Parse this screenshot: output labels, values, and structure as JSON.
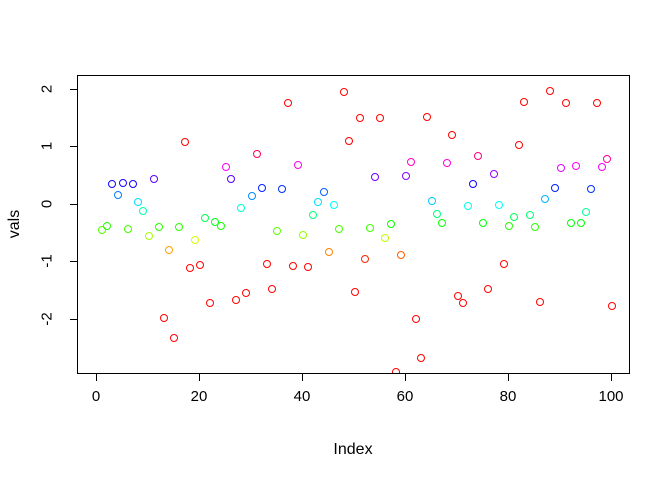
{
  "chart_data": {
    "type": "scatter",
    "title": "",
    "xlabel": "Index",
    "ylabel": "vals",
    "xlim": [
      0,
      104
    ],
    "ylim": [
      -2.95,
      2.05
    ],
    "x_ticks": [
      0,
      20,
      40,
      60,
      80,
      100
    ],
    "y_ticks": [
      -2,
      -1,
      0,
      1,
      2
    ],
    "grid": false,
    "legend": "none",
    "marker": "open-circle",
    "color_rule": "rainbow hue mapped to value: hue = 180 + 180*clamp(value,-1,1) degrees",
    "points": [
      {
        "x": 1,
        "y": -0.44,
        "color": "#52FF00"
      },
      {
        "x": 2,
        "y": -0.38,
        "color": "#24FF00"
      },
      {
        "x": 3,
        "y": 0.36,
        "color": "#1400FF"
      },
      {
        "x": 4,
        "y": 0.17,
        "color": "#007DFF"
      },
      {
        "x": 5,
        "y": 0.37,
        "color": "#1C00FF"
      },
      {
        "x": 6,
        "y": -0.42,
        "color": "#42FF00"
      },
      {
        "x": 7,
        "y": 0.36,
        "color": "#1400FF"
      },
      {
        "x": 8,
        "y": 0.04,
        "color": "#00E0FF"
      },
      {
        "x": 9,
        "y": -0.11,
        "color": "#00FFAB"
      },
      {
        "x": 10,
        "y": -0.55,
        "color": "#A6FF00"
      },
      {
        "x": 11,
        "y": 0.45,
        "color": "#5900FF"
      },
      {
        "x": 12,
        "y": -0.39,
        "color": "#2BFF00"
      },
      {
        "x": 13,
        "y": -1.97,
        "color": "#FF0000"
      },
      {
        "x": 14,
        "y": -0.79,
        "color": "#FFA100"
      },
      {
        "x": 15,
        "y": -2.32,
        "color": "#FF0000"
      },
      {
        "x": 16,
        "y": -0.39,
        "color": "#2BFF00"
      },
      {
        "x": 17,
        "y": 1.09,
        "color": "#FF0000"
      },
      {
        "x": 18,
        "y": -1.1,
        "color": "#FF0000"
      },
      {
        "x": 19,
        "y": -0.61,
        "color": "#D4FF00"
      },
      {
        "x": 20,
        "y": -1.05,
        "color": "#FF0000"
      },
      {
        "x": 21,
        "y": -0.23,
        "color": "#00FF4F"
      },
      {
        "x": 22,
        "y": -1.71,
        "color": "#FF0000"
      },
      {
        "x": 23,
        "y": -0.3,
        "color": "#00FF1A"
      },
      {
        "x": 24,
        "y": -0.37,
        "color": "#1CFF00"
      },
      {
        "x": 25,
        "y": 0.66,
        "color": "#FA00FF"
      },
      {
        "x": 26,
        "y": 0.44,
        "color": "#5200FF"
      },
      {
        "x": 27,
        "y": -1.66,
        "color": "#FF0000"
      },
      {
        "x": 28,
        "y": -0.06,
        "color": "#00FFD1"
      },
      {
        "x": 29,
        "y": -1.54,
        "color": "#FF0000"
      },
      {
        "x": 30,
        "y": 0.15,
        "color": "#008CFF"
      },
      {
        "x": 31,
        "y": 0.88,
        "color": "#FF005C"
      },
      {
        "x": 32,
        "y": 0.29,
        "color": "#0021FF"
      },
      {
        "x": 33,
        "y": -1.03,
        "color": "#FF0000"
      },
      {
        "x": 34,
        "y": -1.47,
        "color": "#FF0000"
      },
      {
        "x": 35,
        "y": -0.46,
        "color": "#61FF00"
      },
      {
        "x": 36,
        "y": 0.27,
        "color": "#0030FF"
      },
      {
        "x": 37,
        "y": 1.77,
        "color": "#FF0000"
      },
      {
        "x": 38,
        "y": -1.07,
        "color": "#FF0000"
      },
      {
        "x": 39,
        "y": 0.69,
        "color": "#FF00ED"
      },
      {
        "x": 40,
        "y": -0.53,
        "color": "#96FF00"
      },
      {
        "x": 41,
        "y": -1.09,
        "color": "#FF0000"
      },
      {
        "x": 42,
        "y": -0.18,
        "color": "#00FF75"
      },
      {
        "x": 43,
        "y": 0.04,
        "color": "#00E0FF"
      },
      {
        "x": 44,
        "y": 0.21,
        "color": "#005EFF"
      },
      {
        "x": 45,
        "y": -0.83,
        "color": "#FF8200"
      },
      {
        "x": 46,
        "y": 0.0,
        "color": "#00FFFF"
      },
      {
        "x": 47,
        "y": -0.43,
        "color": "#4AFF00"
      },
      {
        "x": 48,
        "y": 1.95,
        "color": "#FF0000"
      },
      {
        "x": 49,
        "y": 1.1,
        "color": "#FF0000"
      },
      {
        "x": 50,
        "y": -1.52,
        "color": "#FF0000"
      },
      {
        "x": 51,
        "y": 1.51,
        "color": "#FF0000"
      },
      {
        "x": 52,
        "y": -0.95,
        "color": "#FF2600"
      },
      {
        "x": 53,
        "y": -0.41,
        "color": "#3BFF00"
      },
      {
        "x": 54,
        "y": 0.48,
        "color": "#7000FF"
      },
      {
        "x": 55,
        "y": 1.5,
        "color": "#FF0000"
      },
      {
        "x": 56,
        "y": -0.58,
        "color": "#BDFF00"
      },
      {
        "x": 57,
        "y": -0.34,
        "color": "#05FF00"
      },
      {
        "x": 58,
        "y": -2.91,
        "color": "#FF0000"
      },
      {
        "x": 59,
        "y": -0.88,
        "color": "#FF5C00"
      },
      {
        "x": 60,
        "y": 0.5,
        "color": "#8000FF"
      },
      {
        "x": 61,
        "y": 0.74,
        "color": "#FF00C7"
      },
      {
        "x": 62,
        "y": -1.99,
        "color": "#FF0000"
      },
      {
        "x": 63,
        "y": -2.67,
        "color": "#FF0000"
      },
      {
        "x": 64,
        "y": 1.52,
        "color": "#FF0000"
      },
      {
        "x": 65,
        "y": 0.06,
        "color": "#00C9FF"
      },
      {
        "x": 66,
        "y": -0.16,
        "color": "#00FF73"
      },
      {
        "x": 67,
        "y": -0.33,
        "color": "#05FF00"
      },
      {
        "x": 68,
        "y": 0.72,
        "color": "#FF00D6"
      },
      {
        "x": 69,
        "y": 1.21,
        "color": "#FF0000"
      },
      {
        "x": 70,
        "y": -1.59,
        "color": "#FF0000"
      },
      {
        "x": 71,
        "y": -1.71,
        "color": "#FF0000"
      },
      {
        "x": 72,
        "y": -0.02,
        "color": "#00FFE8"
      },
      {
        "x": 73,
        "y": 0.35,
        "color": "#1000FF"
      },
      {
        "x": 74,
        "y": 0.84,
        "color": "#FF007A"
      },
      {
        "x": 75,
        "y": -0.32,
        "color": "#00FF0A"
      },
      {
        "x": 76,
        "y": -1.47,
        "color": "#FF0000"
      },
      {
        "x": 77,
        "y": 0.53,
        "color": "#9600FF"
      },
      {
        "x": 78,
        "y": -0.01,
        "color": "#00FFF7"
      },
      {
        "x": 79,
        "y": -1.03,
        "color": "#FF0000"
      },
      {
        "x": 80,
        "y": -0.38,
        "color": "#24FF00"
      },
      {
        "x": 81,
        "y": -0.22,
        "color": "#00FF57"
      },
      {
        "x": 82,
        "y": 1.03,
        "color": "#FF0000"
      },
      {
        "x": 83,
        "y": 1.78,
        "color": "#FF0000"
      },
      {
        "x": 84,
        "y": -0.18,
        "color": "#00FF75"
      },
      {
        "x": 85,
        "y": -0.39,
        "color": "#2BFF00"
      },
      {
        "x": 86,
        "y": -1.7,
        "color": "#FF0000"
      },
      {
        "x": 87,
        "y": 0.1,
        "color": "#00B3FF"
      },
      {
        "x": 88,
        "y": 1.97,
        "color": "#FF0000"
      },
      {
        "x": 89,
        "y": 0.29,
        "color": "#0021FF"
      },
      {
        "x": 90,
        "y": 0.63,
        "color": "#E300FF"
      },
      {
        "x": 91,
        "y": 1.77,
        "color": "#FF0000"
      },
      {
        "x": 92,
        "y": -0.32,
        "color": "#00FF0A"
      },
      {
        "x": 93,
        "y": 0.67,
        "color": "#FF00FC"
      },
      {
        "x": 94,
        "y": -0.32,
        "color": "#00FF0A"
      },
      {
        "x": 95,
        "y": -0.13,
        "color": "#00FF9C"
      },
      {
        "x": 96,
        "y": 0.27,
        "color": "#0030FF"
      },
      {
        "x": 97,
        "y": 1.76,
        "color": "#FF0000"
      },
      {
        "x": 98,
        "y": 0.65,
        "color": "#F200FF"
      },
      {
        "x": 99,
        "y": 0.8,
        "color": "#FF0099"
      },
      {
        "x": 100,
        "y": -1.77,
        "color": "#FF0000"
      }
    ]
  }
}
